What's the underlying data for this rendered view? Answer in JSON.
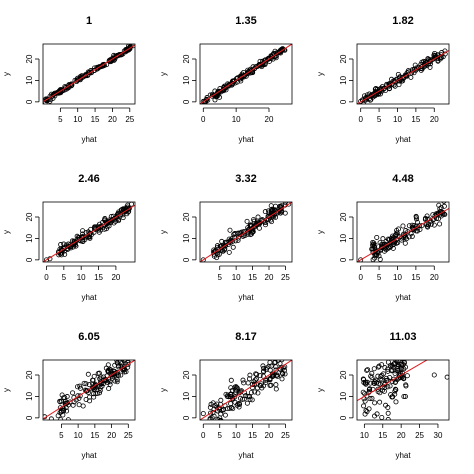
{
  "chart_data": [
    {
      "type": "scatter",
      "title": "1",
      "xlabel": "yhat",
      "ylabel": "y",
      "xticks": [
        5,
        10,
        15,
        20,
        25
      ],
      "yticks": [
        0,
        10,
        20
      ],
      "xlim": [
        0,
        26.5
      ],
      "ylim": [
        -1,
        27
      ],
      "line": {
        "a": 0,
        "b": 1
      },
      "n": 150,
      "x_range": [
        0.5,
        25.5
      ],
      "noise": 0.5,
      "points": [
        [
          1,
          1
        ],
        [
          2,
          0.3
        ],
        [
          26,
          26.2
        ],
        [
          25,
          25.6
        ]
      ]
    },
    {
      "type": "scatter",
      "title": "1.35",
      "xlabel": "yhat",
      "ylabel": "y",
      "xticks": [
        0,
        10,
        20
      ],
      "yticks": [
        0,
        10,
        20
      ],
      "xlim": [
        -1,
        27
      ],
      "ylim": [
        -1,
        27
      ],
      "line": {
        "a": 0,
        "b": 1
      },
      "n": 150,
      "x_range": [
        0.3,
        25
      ],
      "noise": 0.8,
      "points": [
        [
          0,
          0.2
        ],
        [
          1,
          1.2
        ]
      ]
    },
    {
      "type": "scatter",
      "title": "1.82",
      "xlabel": "yhat",
      "ylabel": "y",
      "xticks": [
        0,
        5,
        10,
        15,
        20
      ],
      "yticks": [
        0,
        10,
        20
      ],
      "xlim": [
        -1,
        24
      ],
      "ylim": [
        -1,
        27
      ],
      "line": {
        "a": 0,
        "b": 1
      },
      "n": 150,
      "x_range": [
        0.3,
        23
      ],
      "noise": 1.0,
      "points": [
        [
          0,
          0.2
        ],
        [
          0.5,
          0.8
        ]
      ]
    },
    {
      "type": "scatter",
      "title": "2.46",
      "xlabel": "yhat",
      "ylabel": "y",
      "xticks": [
        0,
        5,
        10,
        15,
        20
      ],
      "yticks": [
        0,
        10,
        20
      ],
      "xlim": [
        -1,
        25.5
      ],
      "ylim": [
        -1,
        27
      ],
      "line": {
        "a": 0,
        "b": 1
      },
      "n": 150,
      "x_range": [
        3,
        24
      ],
      "noise": 1.3,
      "points": [
        [
          0,
          0
        ],
        [
          1,
          0.5
        ],
        [
          24.5,
          26
        ]
      ]
    },
    {
      "type": "scatter",
      "title": "3.32",
      "xlabel": "yhat",
      "ylabel": "y",
      "xticks": [
        5,
        10,
        15,
        20,
        25
      ],
      "yticks": [
        0,
        10,
        20
      ],
      "xlim": [
        -1,
        27
      ],
      "ylim": [
        -1,
        27
      ],
      "line": {
        "a": 0,
        "b": 1
      },
      "n": 150,
      "x_range": [
        3,
        25
      ],
      "noise": 1.6,
      "points": [
        [
          0,
          0
        ],
        [
          26,
          26
        ]
      ]
    },
    {
      "type": "scatter",
      "title": "4.48",
      "xlabel": "yhat",
      "ylabel": "y",
      "xticks": [
        0,
        5,
        10,
        15,
        20
      ],
      "yticks": [
        0,
        10,
        20
      ],
      "xlim": [
        -1,
        24
      ],
      "ylim": [
        -1,
        27
      ],
      "line": {
        "a": 0,
        "b": 1
      },
      "n": 150,
      "x_range": [
        3,
        23
      ],
      "noise": 2.2,
      "points": [
        [
          0,
          0
        ],
        [
          3,
          5
        ]
      ]
    },
    {
      "type": "scatter",
      "title": "6.05",
      "xlabel": "yhat",
      "ylabel": "y",
      "xticks": [
        5,
        10,
        15,
        20,
        25
      ],
      "yticks": [
        0,
        10,
        20
      ],
      "xlim": [
        -0.5,
        27
      ],
      "ylim": [
        -1,
        27
      ],
      "line": {
        "a": 0,
        "b": 1
      },
      "n": 150,
      "x_range": [
        4,
        25
      ],
      "noise": 2.6,
      "points": [
        [
          0,
          0.5
        ],
        [
          2,
          -0.5
        ],
        [
          26,
          27
        ]
      ]
    },
    {
      "type": "scatter",
      "title": "8.17",
      "xlabel": "yhat",
      "ylabel": "y",
      "xticks": [
        0,
        5,
        10,
        15,
        20,
        25
      ],
      "yticks": [
        0,
        10,
        20
      ],
      "xlim": [
        -1,
        27
      ],
      "ylim": [
        -1,
        27
      ],
      "line": {
        "a": 0,
        "b": 1
      },
      "n": 150,
      "x_range": [
        2,
        25
      ],
      "noise": 3.8,
      "points": [
        [
          0,
          2
        ],
        [
          3,
          7
        ],
        [
          5,
          0
        ]
      ]
    },
    {
      "type": "scatter",
      "title": "11.03",
      "xlabel": "yhat",
      "ylabel": "y",
      "xticks": [
        10,
        15,
        20,
        25,
        30
      ],
      "yticks": [
        0,
        10,
        20
      ],
      "xlim": [
        8,
        33
      ],
      "ylim": [
        -1,
        27
      ],
      "line": {
        "a": 0,
        "b": 1
      },
      "n": 150,
      "x_range": [
        9.5,
        22
      ],
      "noise": 6.5,
      "points": [
        [
          32.5,
          19
        ],
        [
          29,
          20
        ]
      ]
    }
  ],
  "colors": {
    "points": "#000000",
    "line": "#e41a1c",
    "axis": "#000000"
  }
}
